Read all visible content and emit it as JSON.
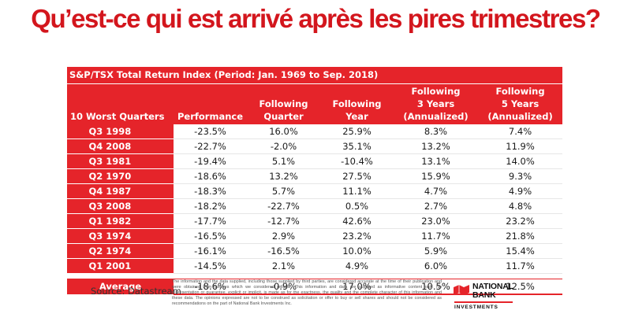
{
  "headline": "Qu’est-ce qui est arrivé après les pires trimestres?",
  "table": {
    "title": "S&P/TSX Total Return Index (Period: Jan. 1969 to Sep. 2018)",
    "headers": [
      [
        "10 Worst Quarters"
      ],
      [
        "Performance"
      ],
      [
        "Following",
        "Quarter"
      ],
      [
        "Following",
        "Year"
      ],
      [
        "Following",
        "3 Years",
        "(Annualized)"
      ],
      [
        "Following",
        "5 Years",
        "(Annualized)"
      ]
    ],
    "rows": [
      {
        "quarter": "Q3 1998",
        "values": [
          "-23.5%",
          "16.0%",
          "25.9%",
          "8.3%",
          "7.4%"
        ]
      },
      {
        "quarter": "Q4 2008",
        "values": [
          "-22.7%",
          "-2.0%",
          "35.1%",
          "13.2%",
          "11.9%"
        ]
      },
      {
        "quarter": "Q3 1981",
        "values": [
          "-19.4%",
          "5.1%",
          "-10.4%",
          "13.1%",
          "14.0%"
        ]
      },
      {
        "quarter": "Q2 1970",
        "values": [
          "-18.6%",
          "13.2%",
          "27.5%",
          "15.9%",
          "9.3%"
        ]
      },
      {
        "quarter": "Q4 1987",
        "values": [
          "-18.3%",
          "5.7%",
          "11.1%",
          "4.7%",
          "4.9%"
        ]
      },
      {
        "quarter": "Q3 2008",
        "values": [
          "-18.2%",
          "-22.7%",
          "0.5%",
          "2.7%",
          "4.8%"
        ]
      },
      {
        "quarter": "Q1 1982",
        "values": [
          "-17.7%",
          "-12.7%",
          "42.6%",
          "23.0%",
          "23.2%"
        ]
      },
      {
        "quarter": "Q3 1974",
        "values": [
          "-16.5%",
          "2.9%",
          "23.2%",
          "11.7%",
          "21.8%"
        ]
      },
      {
        "quarter": "Q2 1974",
        "values": [
          "-16.1%",
          "-16.5%",
          "10.0%",
          "5.9%",
          "15.4%"
        ]
      },
      {
        "quarter": "Q1 2001",
        "values": [
          "-14.5%",
          "2.1%",
          "4.9%",
          "6.0%",
          "11.7%"
        ]
      }
    ],
    "average": {
      "label": "Average",
      "values": [
        "-18.6%",
        "-0.9%",
        "17.0%",
        "10.5%",
        "12.5%"
      ]
    }
  },
  "source": "Source: Datastream",
  "disclaimer": "The information and the data supplied, including those supplied by third parties, are considered accurate at the time of their publication and were obtained from sources which we considered reliable. This information and data are supplied as informative content only. No representation or guarantee, explicit or implicit, is made as for the exactness, the quality and the complete character of this information and these data. The opinions expressed are not to be construed as solicitation or offer to buy or sell shares and should not be considered as recommendations on the part of National Bank Investments Inc.",
  "logo": {
    "line1": "NATIONAL",
    "line2": "BANK",
    "sub": "INVESTMENTS",
    "icon": "eagle-flag-icon"
  },
  "colors": {
    "accent": "#e5242a",
    "headline": "#d3161d"
  }
}
